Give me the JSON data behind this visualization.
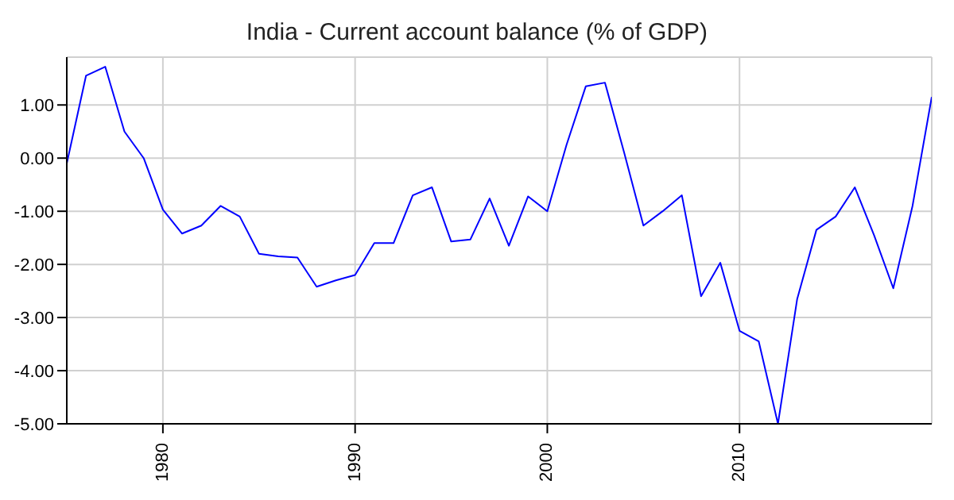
{
  "chart_data": {
    "type": "line",
    "title": "India - Current account balance (% of GDP)",
    "x": [
      1975,
      1976,
      1977,
      1978,
      1979,
      1980,
      1981,
      1982,
      1983,
      1984,
      1985,
      1986,
      1987,
      1988,
      1989,
      1990,
      1991,
      1992,
      1993,
      1994,
      1995,
      1996,
      1997,
      1998,
      1999,
      2000,
      2001,
      2002,
      2003,
      2004,
      2005,
      2006,
      2007,
      2008,
      2009,
      2010,
      2011,
      2012,
      2013,
      2014,
      2015,
      2016,
      2017,
      2018,
      2019,
      2020
    ],
    "series": [
      {
        "color": "#0000ff",
        "values": [
          -0.1,
          1.55,
          1.72,
          0.5,
          0.0,
          -0.97,
          -1.42,
          -1.27,
          -0.9,
          -1.1,
          -1.8,
          -1.85,
          -1.87,
          -2.42,
          -2.3,
          -2.2,
          -1.6,
          -1.6,
          -0.7,
          -0.55,
          -1.57,
          -1.53,
          -0.76,
          -1.65,
          -0.72,
          -1.0,
          0.25,
          1.35,
          1.42,
          0.1,
          -1.27,
          -1.0,
          -0.7,
          -2.6,
          -1.97,
          -3.25,
          -3.45,
          -5.0,
          -2.65,
          -1.35,
          -1.1,
          -0.55,
          -1.45,
          -2.45,
          -0.9,
          1.15
        ]
      }
    ],
    "xlim": [
      1975,
      2020
    ],
    "xticks": [
      1980,
      1990,
      2000,
      2010
    ],
    "ylim": [
      -5,
      1.9
    ],
    "yticks": [
      {
        "value": -5,
        "label": "-5.00"
      },
      {
        "value": -4,
        "label": "-4.00"
      },
      {
        "value": -3,
        "label": "-3.00"
      },
      {
        "value": -2,
        "label": "-2.00"
      },
      {
        "value": -1,
        "label": "-1.00"
      },
      {
        "value": 0,
        "label": "0.00"
      },
      {
        "value": 1,
        "label": "1.00"
      }
    ],
    "grid": true,
    "marker": "none",
    "line_style": "solid"
  }
}
